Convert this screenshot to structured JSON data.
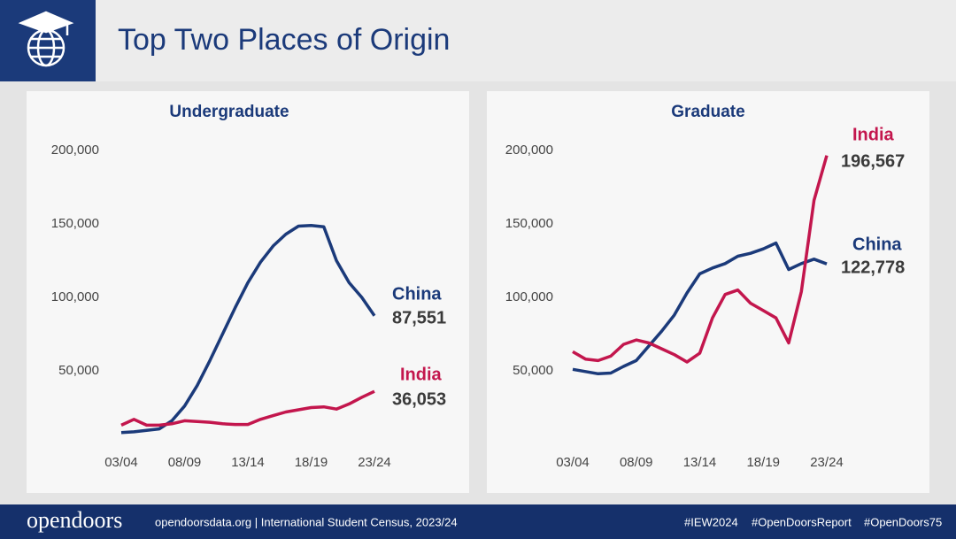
{
  "header": {
    "title": "Top Two Places of Origin"
  },
  "chart_data": [
    {
      "type": "line",
      "title": "Undergraduate",
      "categories": [
        "03/04",
        null,
        null,
        null,
        null,
        "08/09",
        null,
        null,
        null,
        null,
        "13/14",
        null,
        null,
        null,
        null,
        "18/19",
        null,
        null,
        null,
        null,
        "23/24"
      ],
      "ylim": [
        0,
        200000
      ],
      "yticks": [
        {
          "value": 50000,
          "label": "50,000"
        },
        {
          "value": 100000,
          "label": "100,000"
        },
        {
          "value": 150000,
          "label": "150,000"
        },
        {
          "value": 200000,
          "label": "200,000"
        }
      ],
      "series": [
        {
          "name": "China",
          "color": "#1b3a7a",
          "values": [
            8000,
            8500,
            9500,
            10500,
            16000,
            26000,
            40000,
            57000,
            75000,
            93000,
            110000,
            124000,
            135000,
            143000,
            148500,
            149000,
            148000,
            125000,
            110000,
            100000,
            87551
          ],
          "value_labels": [
            null,
            null,
            null,
            null,
            null,
            null,
            null,
            null,
            null,
            null,
            null,
            null,
            null,
            null,
            null,
            null,
            null,
            null,
            null,
            null,
            "87,551"
          ]
        },
        {
          "name": "India",
          "color": "#c3164d",
          "values": [
            13000,
            17000,
            13000,
            13000,
            14000,
            16000,
            15500,
            15000,
            14000,
            13500,
            13500,
            17000,
            19500,
            22000,
            23500,
            25000,
            25500,
            24000,
            27500,
            32000,
            36053
          ],
          "value_labels": [
            null,
            null,
            null,
            null,
            null,
            null,
            null,
            null,
            null,
            null,
            null,
            null,
            null,
            null,
            null,
            null,
            null,
            null,
            null,
            null,
            "36,053"
          ]
        }
      ]
    },
    {
      "type": "line",
      "title": "Graduate",
      "categories": [
        "03/04",
        null,
        null,
        null,
        null,
        "08/09",
        null,
        null,
        null,
        null,
        "13/14",
        null,
        null,
        null,
        null,
        "18/19",
        null,
        null,
        null,
        null,
        "23/24"
      ],
      "ylim": [
        0,
        200000
      ],
      "yticks": [
        {
          "value": 50000,
          "label": "50,000"
        },
        {
          "value": 100000,
          "label": "100,000"
        },
        {
          "value": 150000,
          "label": "150,000"
        },
        {
          "value": 200000,
          "label": "200,000"
        }
      ],
      "series": [
        {
          "name": "China",
          "color": "#1b3a7a",
          "values": [
            51000,
            49500,
            48000,
            48500,
            53000,
            57000,
            67000,
            77000,
            88000,
            103000,
            116000,
            120000,
            123000,
            128000,
            130000,
            133000,
            137000,
            119000,
            123000,
            126000,
            122778
          ],
          "value_labels": [
            null,
            null,
            null,
            null,
            null,
            null,
            null,
            null,
            null,
            null,
            null,
            null,
            null,
            null,
            null,
            null,
            null,
            null,
            null,
            null,
            "122,778"
          ]
        },
        {
          "name": "India",
          "color": "#c3164d",
          "values": [
            63000,
            58000,
            57000,
            60000,
            68000,
            71000,
            69000,
            65000,
            61000,
            56000,
            62000,
            86000,
            102000,
            105000,
            96000,
            91000,
            86000,
            69000,
            104000,
            166000,
            196567
          ],
          "value_labels": [
            null,
            null,
            null,
            null,
            null,
            null,
            null,
            null,
            null,
            null,
            null,
            null,
            null,
            null,
            null,
            null,
            null,
            null,
            null,
            null,
            "196,567"
          ]
        }
      ]
    }
  ],
  "footer": {
    "logo": "opendoors",
    "source": "opendoorsdata.org | International Student Census, 2023/24",
    "hashtags": [
      "#IEW2024",
      "#OpenDoorsReport",
      "#OpenDoors75"
    ]
  }
}
